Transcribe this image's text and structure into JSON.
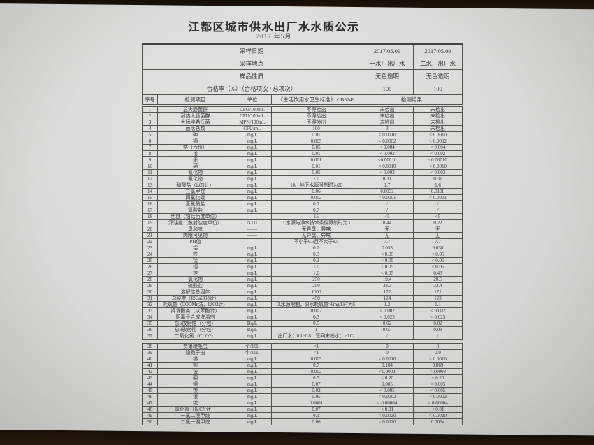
{
  "meta": {
    "title": "江都区城市供水出厂水水质公示",
    "subtitle": "2017 年5月"
  },
  "colors": {
    "desk": "#2b1f12",
    "paper": "#dcdbd7",
    "line": "#54524d",
    "text": "#3a393c"
  },
  "table": {
    "info_rows": [
      {
        "label": "采样日期",
        "v1": "2017.05.09",
        "v2": "2017.05.09"
      },
      {
        "label": "采样地点",
        "v1": "一水厂出厂水",
        "v2": "二水厂出厂水"
      },
      {
        "label": "样品性质",
        "v1": "无色透明",
        "v2": "无色透明"
      },
      {
        "label": "合格率（%）（合格项次 / 总项次）",
        "v1": "100",
        "v2": "100"
      }
    ],
    "columns": {
      "no": "序号",
      "item": "检测项目",
      "unit": "单位",
      "standard": "《生活饮用水卫生标准》 GB5749",
      "result": "检测结果"
    }
  },
  "rows": [
    {
      "no": "1",
      "item": "总大肠菌群",
      "unit": "CFU/100mL",
      "standard": "不得检出",
      "r1": "未检出",
      "r2": "未检出"
    },
    {
      "no": "2",
      "item": "耐热大肠菌群",
      "unit": "CFU/100mL",
      "standard": "不得检出",
      "r1": "未检出",
      "r2": "未检出"
    },
    {
      "no": "3",
      "item": "大肠埃希氏菌",
      "unit": "MPN/100mL",
      "standard": "不得检出",
      "r1": "未检出",
      "r2": "未检出"
    },
    {
      "no": "4",
      "item": "菌落总数",
      "unit": "CFU/mL",
      "standard": "100",
      "r1": "3",
      "r2": "未检出"
    },
    {
      "no": "5",
      "item": "砷",
      "unit": "mg/L",
      "standard": "0.01",
      "r1": "< 0.0010",
      "r2": "< 0.0010"
    },
    {
      "no": "6",
      "item": "镉",
      "unit": "mg/L",
      "standard": "0.005",
      "r1": "< 0.0002",
      "r2": "< 0.0002"
    },
    {
      "no": "7",
      "item": "铬（六价）",
      "unit": "mg/L",
      "standard": "0.05",
      "r1": "< 0.004",
      "r2": "< 0.004"
    },
    {
      "no": "8",
      "item": "铅",
      "unit": "mg/L",
      "standard": "0.01",
      "r1": "< 0.002",
      "r2": "< 0.002"
    },
    {
      "no": "9",
      "item": "汞",
      "unit": "mg/L",
      "standard": "0.001",
      "r1": "<0.00010",
      "r2": "<0.00010"
    },
    {
      "no": "10",
      "item": "硒",
      "unit": "mg/L",
      "standard": "0.01",
      "r1": "< 0.0010",
      "r2": "< 0.0010"
    },
    {
      "no": "11",
      "item": "氰化物",
      "unit": "mg/L",
      "standard": "0.05",
      "r1": "< 0.002",
      "r2": "< 0.002"
    },
    {
      "no": "12",
      "item": "氟化物",
      "unit": "mg/L",
      "standard": "1.0",
      "r1": "0.31",
      "r2": "0.31"
    },
    {
      "no": "13",
      "item": "硝酸盐（以N计）",
      "unit": "mg/L",
      "standard": "10、地下水源限制时为20",
      "r1": "1.7",
      "r2": "1.6"
    },
    {
      "no": "14",
      "item": "三氯甲烷",
      "unit": "mg/L",
      "standard": "0.06",
      "r1": "0.0032",
      "r2": "0.0108"
    },
    {
      "no": "15",
      "item": "四氯化碳",
      "unit": "mg/L",
      "standard": "0.002",
      "r1": "< 0.0001",
      "r2": "< 0.0001"
    },
    {
      "no": "16",
      "item": "亚氯酸盐",
      "unit": "mg/L",
      "standard": "0.7",
      "r1": "/",
      "r2": "/"
    },
    {
      "no": "17",
      "item": "氯酸盐",
      "unit": "mg/L",
      "standard": "0.7",
      "r1": "/",
      "r2": "/"
    },
    {
      "no": "18",
      "item": "色度（铂钴色度单位）",
      "unit": "——",
      "standard": "15",
      "r1": "<5",
      "r2": "<5"
    },
    {
      "no": "19",
      "item": "浑浊度（散射浊度单位）",
      "unit": "NTU",
      "standard": "1,水源与净水技术条件限制时为3",
      "r1": "0.44",
      "r2": "0.22"
    },
    {
      "no": "20",
      "item": "臭和味",
      "unit": "——",
      "standard": "无异臭、异味",
      "r1": "无",
      "r2": "无"
    },
    {
      "no": "21",
      "item": "肉眼可见物",
      "unit": "——",
      "standard": "无异臭、异味",
      "r1": "无",
      "r2": "无"
    },
    {
      "no": "22",
      "item": "PH值",
      "unit": "——",
      "standard": "不小于6.5且不大于8.5",
      "r1": "7.7",
      "r2": "7.7"
    },
    {
      "no": "23",
      "item": "铝",
      "unit": "mg/L",
      "standard": "0.2",
      "r1": "0.053",
      "r2": "0.038"
    },
    {
      "no": "24",
      "item": "铁",
      "unit": "mg/L",
      "standard": "0.3",
      "r1": "< 0.05",
      "r2": "< 0.05"
    },
    {
      "no": "25",
      "item": "锰",
      "unit": "mg/L",
      "standard": "0.1",
      "r1": "< 0.05",
      "r2": "< 0.05"
    },
    {
      "no": "26",
      "item": "铜",
      "unit": "mg/L",
      "standard": "1.0",
      "r1": "< 0.05",
      "r2": "< 0.05"
    },
    {
      "no": "27",
      "item": "锌",
      "unit": "mg/L",
      "standard": "1.0",
      "r1": "< 0.05",
      "r2": "0.43"
    },
    {
      "no": "28",
      "item": "氯化物",
      "unit": "mg/L",
      "standard": "250",
      "r1": "19.4",
      "r2": "20.5"
    },
    {
      "no": "29",
      "item": "硫酸盐",
      "unit": "mg/L",
      "standard": "250",
      "r1": "33.3",
      "r2": "32.4"
    },
    {
      "no": "30",
      "item": "溶解性总固体",
      "unit": "mg/L",
      "standard": "1000",
      "r1": "172",
      "r2": "171"
    },
    {
      "no": "31",
      "item": "总硬度（以CaCO3计）",
      "unit": "mg/L",
      "standard": "450",
      "r1": "124",
      "r2": "123"
    },
    {
      "no": "32",
      "item": "耗氧量（CODMn法，以O2计）",
      "unit": "mg/L",
      "standard": "3,水源限制，原水耗氧量>6mg/L时为5",
      "r1": "1.2",
      "r2": "1.1"
    },
    {
      "no": "33",
      "item": "挥发酚类（以苯酚计）",
      "unit": "mg/L",
      "standard": "0.002",
      "r1": "< 0.002",
      "r2": "< 0.002"
    },
    {
      "no": "34",
      "item": "阴离子合成洗涤剂",
      "unit": "mg/L",
      "standard": "0.3",
      "r1": "< 0.025",
      "r2": "< 0.025"
    },
    {
      "no": "35",
      "item": "总α放射性（分包）",
      "unit": "Bq/L",
      "standard": "0.5",
      "r1": "0.02",
      "r2": "0.02"
    },
    {
      "no": "36",
      "item": "总β放射性（分包）",
      "unit": "Bq/L",
      "standard": "1",
      "r1": "0.07",
      "r2": "0.09"
    },
    {
      "no": "37",
      "item": "二氧化氯（CLO2）",
      "unit": "mg/L",
      "standard": "出厂水：0.1~0.8；管网末梢水：≥0.02",
      "r1": "/",
      "r2": "/"
    },
    {
      "no": "38",
      "item": "贾第鞭毛虫",
      "unit": "个/10L",
      "standard": "<1",
      "r1": "0",
      "r2": "0"
    },
    {
      "no": "39",
      "item": "隐孢子虫",
      "unit": "个/10L",
      "standard": "<1",
      "r1": "0",
      "r2": "0.0"
    },
    {
      "no": "40",
      "item": "锑",
      "unit": "mg/L",
      "standard": "0.005",
      "r1": "< 0.0010",
      "r2": "< 0.0010"
    },
    {
      "no": "41",
      "item": "钡",
      "unit": "mg/L",
      "standard": "0.7",
      "r1": "0.104",
      "r2": "0.069"
    },
    {
      "no": "42",
      "item": "铍",
      "unit": "mg/L",
      "standard": "0.002",
      "r1": "<0.0002",
      "r2": "<0.0002"
    },
    {
      "no": "43",
      "item": "硼",
      "unit": "mg/L",
      "standard": "0.5",
      "r1": "< 0.20",
      "r2": "< 0.20"
    },
    {
      "no": "44",
      "item": "钼",
      "unit": "mg/L",
      "standard": "0.07",
      "r1": "0.005",
      "r2": "< 0.005"
    },
    {
      "no": "45",
      "item": "镍",
      "unit": "mg/L",
      "standard": "0.02",
      "r1": "< 0.005",
      "r2": "< 0.005"
    },
    {
      "no": "46",
      "item": "银",
      "unit": "mg/L",
      "standard": "0.05",
      "r1": "< 0.0002",
      "r2": "< 0.0002"
    },
    {
      "no": "47",
      "item": "铊",
      "unit": "mg/L",
      "standard": "0.0001",
      "r1": "< 0.00004",
      "r2": "< 0.00004"
    },
    {
      "no": "48",
      "item": "氯化氰（以CN计）",
      "unit": "mg/L",
      "standard": "0.07",
      "r1": "< 0.01",
      "r2": "< 0.01"
    },
    {
      "no": "49",
      "item": "一氯二溴甲烷",
      "unit": "mg/L",
      "standard": "0.1",
      "r1": "< 0.0020",
      "r2": "< 0.0020"
    },
    {
      "no": "50",
      "item": "二氯一溴甲烷",
      "unit": "mg/L",
      "standard": "0.06",
      "r1": "< 0.0020",
      "r2": "0.0054"
    }
  ]
}
